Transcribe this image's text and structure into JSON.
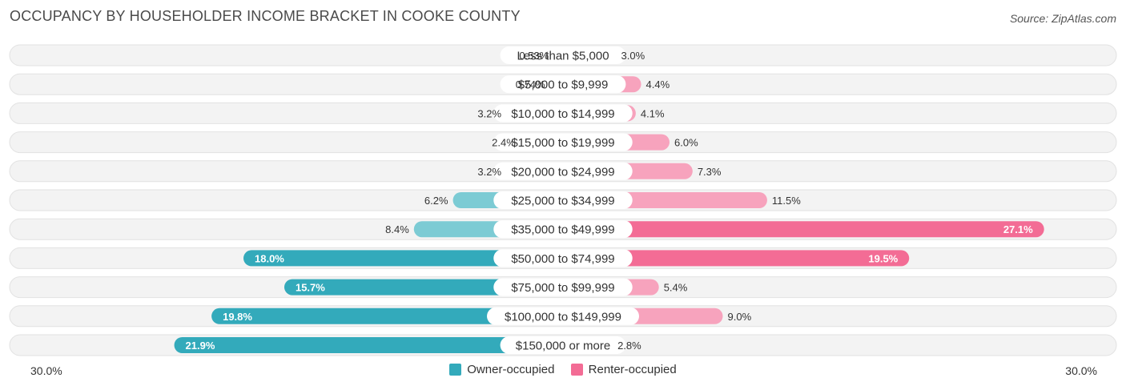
{
  "header": {
    "title": "OCCUPANCY BY HOUSEHOLDER INCOME BRACKET IN COOKE COUNTY",
    "source": "Source: ZipAtlas.com"
  },
  "axis": {
    "left_label": "30.0%",
    "right_label": "30.0%"
  },
  "legend": {
    "owner_label": "Owner-occupied",
    "renter_label": "Renter-occupied"
  },
  "colors": {
    "owner_light": "#7ccbd4",
    "owner_dark": "#33aabb",
    "renter_light": "#f7a3bd",
    "renter_dark": "#f36c95",
    "track": "#efefef"
  },
  "chart_data": {
    "type": "bar",
    "orientation": "horizontal-diverging",
    "title": "OCCUPANCY BY HOUSEHOLDER INCOME BRACKET IN COOKE COUNTY",
    "xlim": [
      -30,
      30
    ],
    "categories": [
      "Less than $5,000",
      "$5,000 to $9,999",
      "$10,000 to $14,999",
      "$15,000 to $19,999",
      "$20,000 to $24,999",
      "$25,000 to $34,999",
      "$35,000 to $49,999",
      "$50,000 to $74,999",
      "$75,000 to $99,999",
      "$100,000 to $149,999",
      "$150,000 or more"
    ],
    "series": [
      {
        "name": "Owner-occupied",
        "values": [
          0.53,
          0.74,
          3.2,
          2.4,
          3.2,
          6.2,
          8.4,
          18.0,
          15.7,
          19.8,
          21.9
        ],
        "labels": [
          "0.53%",
          "0.74%",
          "3.2%",
          "2.4%",
          "3.2%",
          "6.2%",
          "8.4%",
          "18.0%",
          "15.7%",
          "19.8%",
          "21.9%"
        ]
      },
      {
        "name": "Renter-occupied",
        "values": [
          3.0,
          4.4,
          4.1,
          6.0,
          7.3,
          11.5,
          27.1,
          19.5,
          5.4,
          9.0,
          2.8
        ],
        "labels": [
          "3.0%",
          "4.4%",
          "4.1%",
          "6.0%",
          "7.3%",
          "11.5%",
          "27.1%",
          "19.5%",
          "5.4%",
          "9.0%",
          "2.8%"
        ]
      }
    ]
  }
}
